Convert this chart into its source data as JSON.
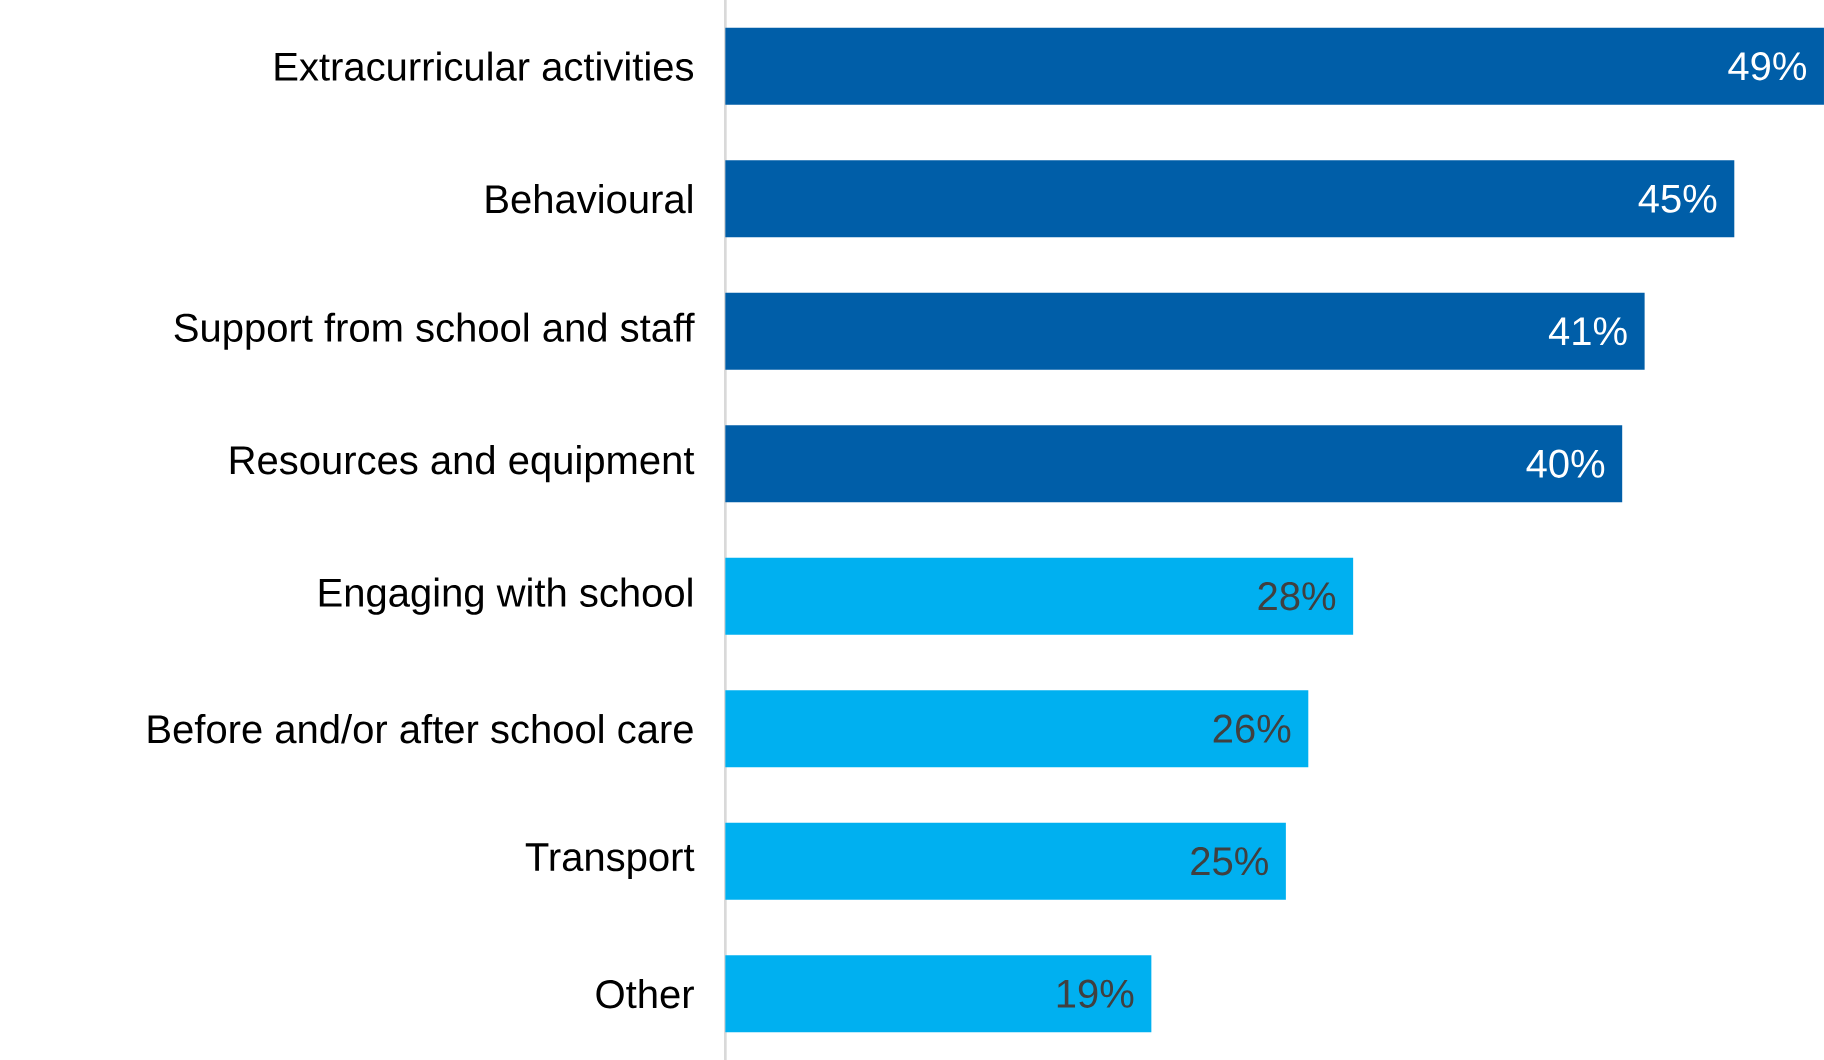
{
  "chart_data": {
    "type": "bar",
    "orientation": "horizontal",
    "categories": [
      "Extracurricular activities",
      "Behavioural",
      "Support from school and staff",
      "Resources and equipment",
      "Engaging with school",
      "Before and/or after school care",
      "Transport",
      "Other"
    ],
    "values": [
      49,
      45,
      41,
      40,
      28,
      26,
      25,
      19
    ],
    "value_labels": [
      "49%",
      "45%",
      "41%",
      "40%",
      "28%",
      "26%",
      "25%",
      "19%"
    ],
    "colors": [
      "#005EA8",
      "#005EA8",
      "#005EA8",
      "#005EA8",
      "#00B0F0",
      "#00B0F0",
      "#00B0F0",
      "#00B0F0"
    ]
  }
}
